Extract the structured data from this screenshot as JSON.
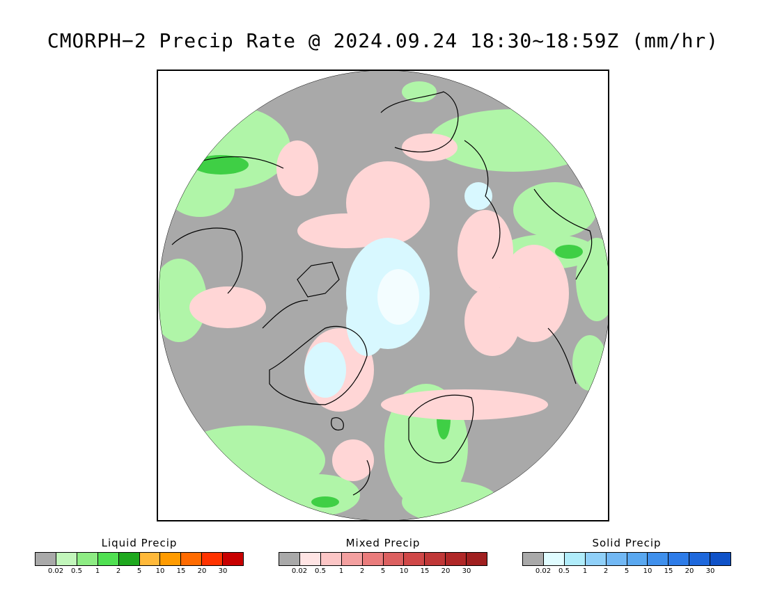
{
  "title": "CMORPH−2 Precip Rate @ 2024.09.24 18:30~18:59Z (mm/hr)",
  "colors": {
    "no_precip": "#a9a9a9",
    "land_outline": "#000000",
    "liquid_light": "#b0f5a8",
    "mixed_light": "#ffd6d6",
    "solid_light": "#d8f8ff"
  },
  "legends": [
    {
      "title": "Liquid Precip",
      "colors": [
        "#a9a9a9",
        "#c2f6bb",
        "#8eec84",
        "#50e052",
        "#1ea81e",
        "#ffb93a",
        "#ff9b00",
        "#ff6b00",
        "#ff3300",
        "#c80000"
      ],
      "ticks": [
        "0.02",
        "0.5",
        "1",
        "2",
        "5",
        "10",
        "15",
        "20",
        "30"
      ]
    },
    {
      "title": "Mixed Precip",
      "colors": [
        "#a9a9a9",
        "#ffe4e4",
        "#fcc6c6",
        "#f4a0a0",
        "#ea7c7c",
        "#dc6060",
        "#d04848",
        "#c03838",
        "#b02828",
        "#a02020"
      ],
      "ticks": [
        "0.02",
        "0.5",
        "1",
        "2",
        "5",
        "10",
        "15",
        "20",
        "30"
      ]
    },
    {
      "title": "Solid Precip",
      "colors": [
        "#a9a9a9",
        "#e0fcff",
        "#b0ecfa",
        "#90d0f8",
        "#72b8f4",
        "#5aa8f0",
        "#4090ec",
        "#2e7ce8",
        "#1e68dc",
        "#0f52c8"
      ],
      "ticks": [
        "0.02",
        "0.5",
        "1",
        "2",
        "5",
        "10",
        "15",
        "20",
        "30"
      ]
    }
  ]
}
